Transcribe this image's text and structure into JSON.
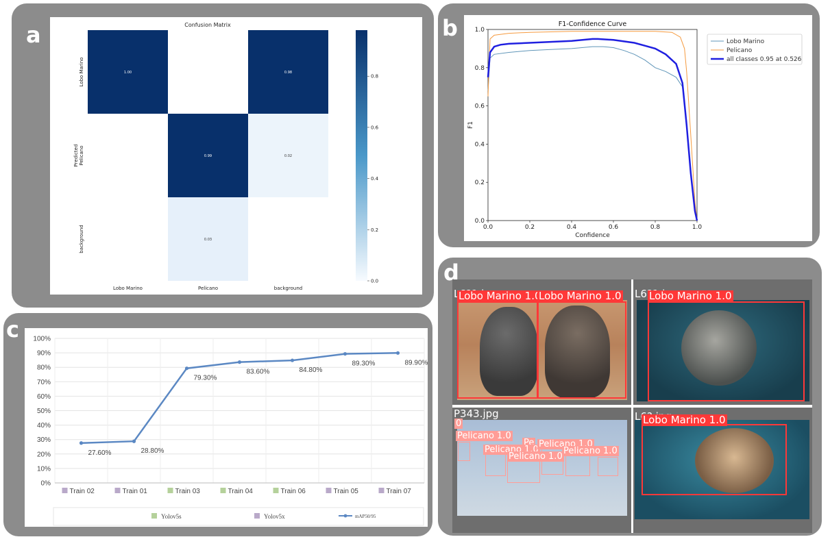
{
  "panels": {
    "a": {
      "letter": "a"
    },
    "b": {
      "letter": "b"
    },
    "c": {
      "letter": "c"
    },
    "d": {
      "letter": "d"
    }
  },
  "chart_data": [
    {
      "panel": "a",
      "type": "heatmap",
      "title": "Confusion Matrix",
      "ylabel_top": "Predicted",
      "row_labels": [
        "Lobo Marino",
        "Pelicano",
        "background"
      ],
      "col_labels": [
        "Lobo Marino",
        "Pelicano",
        "background"
      ],
      "cells": [
        {
          "row": 0,
          "col": 0,
          "value": 1.0,
          "label": "1.00"
        },
        {
          "row": 0,
          "col": 2,
          "value": 0.98,
          "label": "0.98"
        },
        {
          "row": 1,
          "col": 1,
          "value": 0.99,
          "label": "0.99"
        },
        {
          "row": 1,
          "col": 2,
          "value": 0.02,
          "label": "0.02"
        },
        {
          "row": 2,
          "col": 1,
          "value": 0.03,
          "label": "0.03"
        }
      ],
      "colorbar_ticks": [
        "0.0",
        "0.2",
        "0.4",
        "0.6",
        "0.8"
      ],
      "colorbar_range": [
        0,
        1
      ],
      "colors": {
        "high": "#08306b",
        "low": "#f7fbff",
        "mid": "#4a98c9"
      }
    },
    {
      "panel": "b",
      "type": "line",
      "title": "F1-Confidence Curve",
      "xlabel": "Confidence",
      "ylabel": "F1",
      "xlim": [
        0,
        1
      ],
      "ylim": [
        0,
        1
      ],
      "xticks": [
        "0.0",
        "0.2",
        "0.4",
        "0.6",
        "0.8",
        "1.0"
      ],
      "yticks": [
        "0.0",
        "0.2",
        "0.4",
        "0.6",
        "0.8",
        "1.0"
      ],
      "legend": "top-right",
      "series": [
        {
          "name": "Lobo Marino",
          "color": "#5f95b8",
          "width": 1,
          "x": [
            0.0,
            0.01,
            0.03,
            0.1,
            0.2,
            0.3,
            0.4,
            0.5,
            0.55,
            0.6,
            0.65,
            0.7,
            0.75,
            0.8,
            0.85,
            0.9,
            0.93,
            0.95,
            0.97,
            0.99,
            1.0
          ],
          "y": [
            0.68,
            0.85,
            0.87,
            0.88,
            0.89,
            0.895,
            0.9,
            0.91,
            0.91,
            0.905,
            0.89,
            0.87,
            0.84,
            0.8,
            0.78,
            0.75,
            0.7,
            0.5,
            0.25,
            0.05,
            0.0
          ]
        },
        {
          "name": "Pelicano",
          "color": "#f59a3f",
          "width": 1,
          "x": [
            0.0,
            0.01,
            0.03,
            0.1,
            0.2,
            0.4,
            0.6,
            0.8,
            0.88,
            0.92,
            0.94,
            0.95,
            0.97,
            0.99,
            1.0
          ],
          "y": [
            0.65,
            0.95,
            0.97,
            0.98,
            0.985,
            0.99,
            0.99,
            0.99,
            0.985,
            0.96,
            0.9,
            0.78,
            0.45,
            0.1,
            0.0
          ]
        },
        {
          "name": "all classes 0.95 at 0.526",
          "color": "#1f1fe0",
          "width": 2.5,
          "x": [
            0.0,
            0.01,
            0.03,
            0.06,
            0.1,
            0.2,
            0.3,
            0.4,
            0.5,
            0.526,
            0.6,
            0.7,
            0.75,
            0.8,
            0.85,
            0.9,
            0.93,
            0.95,
            0.97,
            0.99,
            1.0
          ],
          "y": [
            0.75,
            0.88,
            0.91,
            0.92,
            0.925,
            0.93,
            0.935,
            0.94,
            0.95,
            0.95,
            0.945,
            0.93,
            0.915,
            0.9,
            0.87,
            0.82,
            0.72,
            0.5,
            0.25,
            0.05,
            0.0
          ]
        }
      ]
    },
    {
      "panel": "c",
      "type": "line",
      "categories": [
        "Train 02",
        "Train 01",
        "Train 03",
        "Train 04",
        "Train 06",
        "Train 05",
        "Train 07"
      ],
      "category_colors": [
        "#b9a9c9",
        "#b9a9c9",
        "#b5d19b",
        "#b5d19b",
        "#b5d19b",
        "#b9a9c9",
        "#b9a9c9"
      ],
      "ylim": [
        0,
        100
      ],
      "yticks": [
        "0%",
        "10%",
        "20%",
        "30%",
        "40%",
        "50%",
        "60%",
        "70%",
        "80%",
        "90%",
        "100%"
      ],
      "grid": true,
      "series": [
        {
          "name": "mAP50/95",
          "color": "#5b88c3",
          "values": [
            27.6,
            28.8,
            79.3,
            83.6,
            84.8,
            89.3,
            89.9
          ],
          "labels": [
            "27.60%",
            "28.80%",
            "79.30%",
            "83.60%",
            "84.80%",
            "89.30%",
            "89.90%"
          ]
        }
      ],
      "legend": [
        {
          "name": "Yolov5s",
          "color": "#b5d19b",
          "kind": "square"
        },
        {
          "name": "Yolov5x",
          "color": "#b9a9c9",
          "kind": "square"
        },
        {
          "name": "mAP50/95",
          "color": "#5b88c3",
          "kind": "line"
        }
      ]
    }
  ],
  "detections": {
    "tiles": [
      {
        "filename": "L6?1.jpg",
        "labels": [
          "Lobo Marino 1.0",
          "Lobo Marino 1.0"
        ]
      },
      {
        "filename": "L6?1.jpg",
        "labels": [
          "Lobo Marino 1.0"
        ]
      },
      {
        "filename": "P343.jpg",
        "labels": [
          "Pelicano 1.0",
          "Pe",
          "Pelicano 1.0",
          "Pelicano 1.0",
          "Pelicano 1.0",
          "Pelicano 1.0",
          "0"
        ]
      },
      {
        "filename": "L6?.jpg",
        "labels": [
          "Lobo Marino 1.0"
        ]
      }
    ],
    "box_colors": {
      "lobo": "#ff3838",
      "pelicano": "#ff9d97"
    }
  }
}
